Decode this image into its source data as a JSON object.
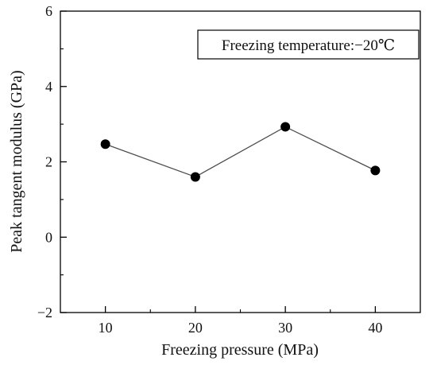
{
  "chart_data": {
    "type": "line",
    "title": "",
    "xlabel": "Freezing pressure (MPa)",
    "ylabel": "Peak tangent modulus (GPa)",
    "annotation": "Freezing temperature:−20℃",
    "x": [
      10,
      20,
      30,
      40
    ],
    "series": [
      {
        "values": [
          2.47,
          1.6,
          2.93,
          1.77
        ],
        "color": "#000000"
      }
    ],
    "xlim": [
      5,
      45
    ],
    "ylim": [
      -2,
      6
    ],
    "xticks": [
      10,
      20,
      30,
      40
    ],
    "xtick_labels": [
      "10",
      "20",
      "30",
      "40"
    ],
    "yticks": [
      -2,
      0,
      2,
      4,
      6
    ],
    "ytick_labels": [
      "−2",
      "0",
      "2",
      "4",
      "6"
    ],
    "grid": false,
    "legend": "none",
    "line_color": "#4d4d4d"
  }
}
